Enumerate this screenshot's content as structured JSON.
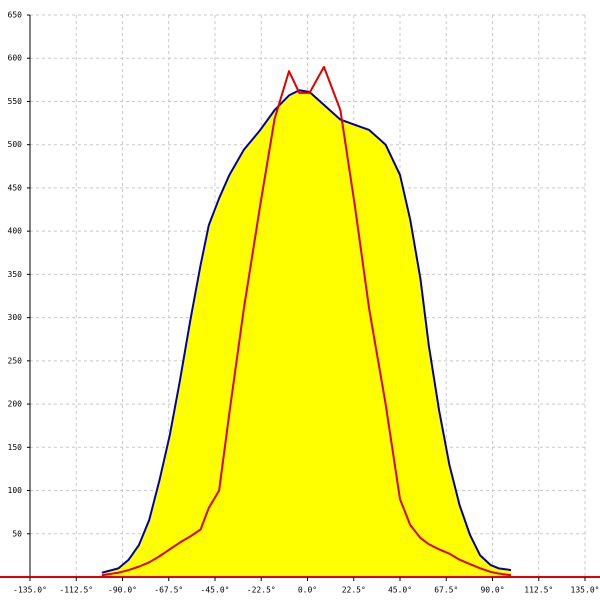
{
  "chart_data": {
    "type": "area-line",
    "x": [
      -100,
      -92,
      -87,
      -82,
      -77,
      -72,
      -67,
      -62,
      -57,
      -52,
      -48,
      -43,
      -38,
      -31,
      -23,
      -16,
      -9,
      -4,
      1,
      8,
      16,
      23,
      30,
      38,
      45,
      50,
      55,
      59,
      64,
      69,
      74,
      79,
      84,
      89,
      93,
      99
    ],
    "series": [
      {
        "color": "#0000aa",
        "fill": "#ffff00",
        "filled": true,
        "values": [
          5,
          10,
          20,
          37,
          66,
          112,
          164,
          228,
          297,
          361,
          407,
          438,
          465,
          494,
          517,
          540,
          557,
          563,
          561,
          546,
          529,
          523,
          517,
          500,
          465,
          413,
          344,
          268,
          193,
          130,
          83,
          49,
          25,
          14,
          10,
          8
        ]
      },
      {
        "color": "#e00000",
        "filled": false,
        "values": [
          2,
          5,
          8,
          12,
          17,
          24,
          32,
          40,
          47,
          55,
          80,
          100,
          190,
          310,
          430,
          530,
          585,
          560,
          560,
          590,
          540,
          430,
          310,
          200,
          90,
          60,
          45,
          38,
          32,
          27,
          20,
          15,
          10,
          6,
          4,
          2
        ]
      }
    ],
    "xlim": [
      -135,
      135
    ],
    "xticks": [
      {
        "value": -135,
        "label": "-135.0°"
      },
      {
        "value": -112.5,
        "label": "-112.5°"
      },
      {
        "value": -90,
        "label": "-90.0°"
      },
      {
        "value": -67.5,
        "label": "-67.5°"
      },
      {
        "value": -45,
        "label": "-45.0°"
      },
      {
        "value": -22.5,
        "label": "-22.5°"
      },
      {
        "value": 0,
        "label": "0.0°"
      },
      {
        "value": 22.5,
        "label": "22.5°"
      },
      {
        "value": 45,
        "label": "45.0°"
      },
      {
        "value": 67.5,
        "label": "67.5°"
      },
      {
        "value": 90,
        "label": "90.0°"
      },
      {
        "value": 112.5,
        "label": "112.5°"
      },
      {
        "value": 135,
        "label": "135.0°"
      }
    ],
    "ylim": [
      0,
      650
    ],
    "yticks": [
      50,
      100,
      150,
      200,
      250,
      300,
      350,
      400,
      450,
      500,
      550,
      600,
      650
    ],
    "grid": true
  }
}
